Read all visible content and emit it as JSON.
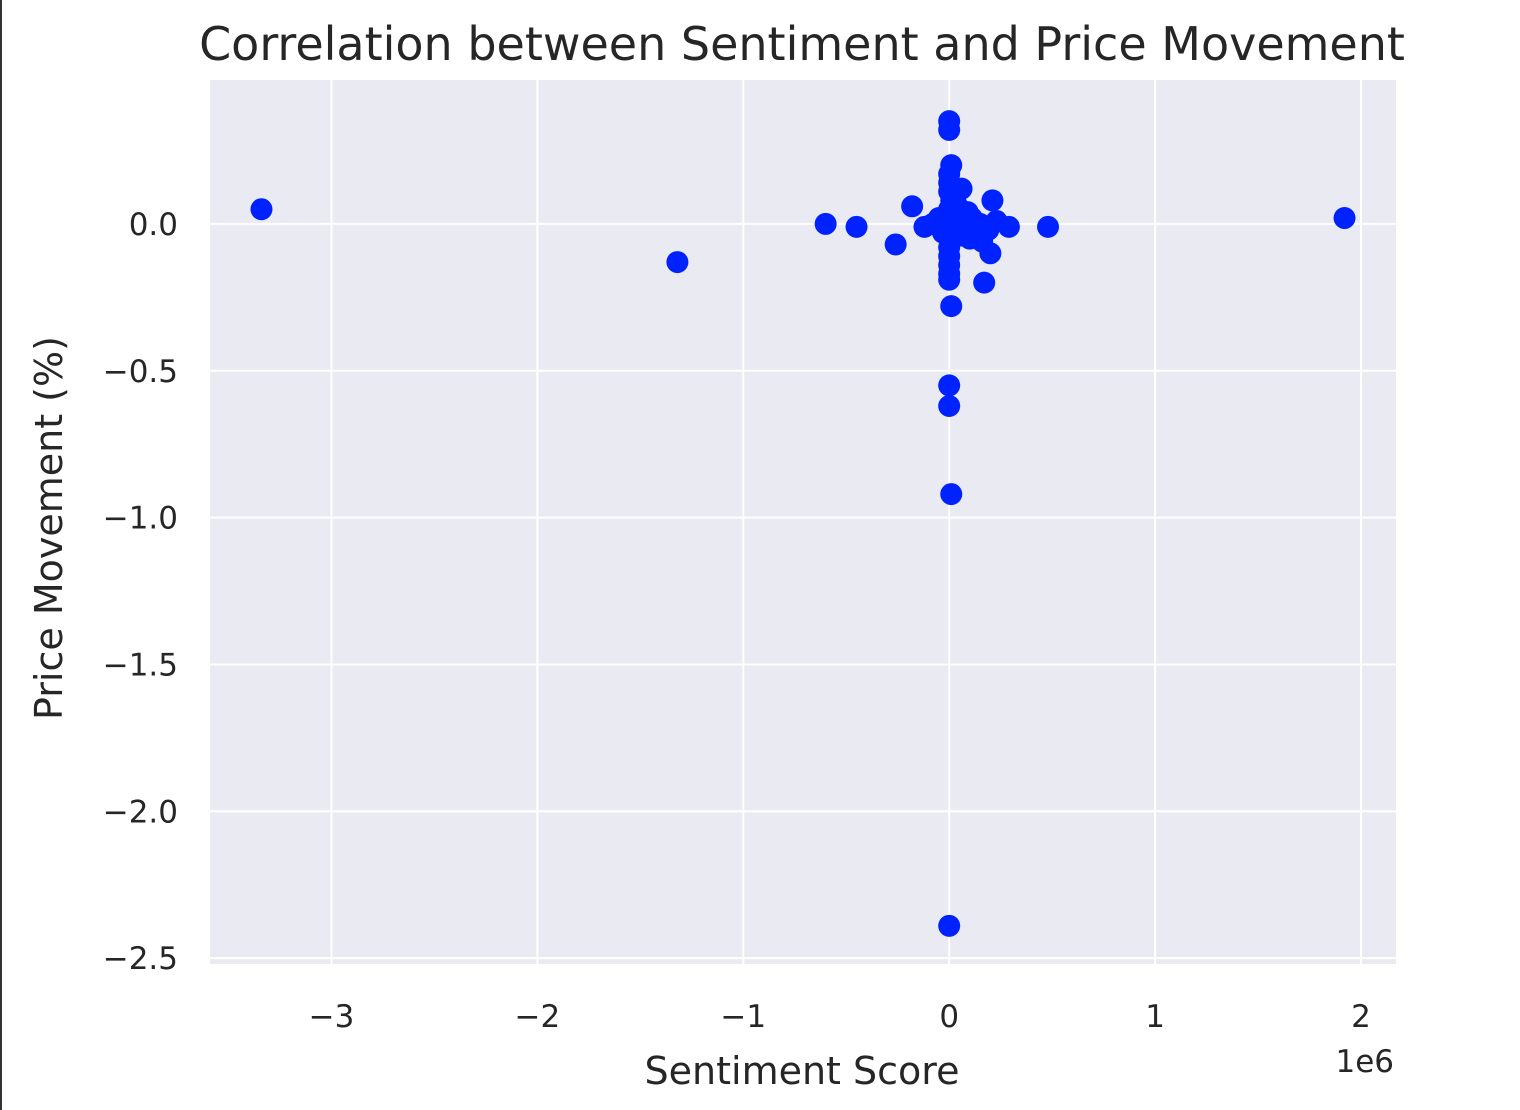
{
  "chart_data": {
    "type": "scatter",
    "title": "Correlation between Sentiment and Price Movement",
    "xlabel": "Sentiment Score",
    "ylabel": "Price Movement (%)",
    "x_offset_label": "1e6",
    "xlim": [
      -3.59,
      2.17
    ],
    "ylim": [
      -2.52,
      0.49
    ],
    "x_ticks": [
      {
        "value": -3,
        "label": "−3"
      },
      {
        "value": -2,
        "label": "−2"
      },
      {
        "value": -1,
        "label": "−1"
      },
      {
        "value": 0,
        "label": "0"
      },
      {
        "value": 1,
        "label": "1"
      },
      {
        "value": 2,
        "label": "2"
      }
    ],
    "y_ticks": [
      {
        "value": 0.0,
        "label": "0.0"
      },
      {
        "value": -0.5,
        "label": "−0.5"
      },
      {
        "value": -1.0,
        "label": "−1.0"
      },
      {
        "value": -1.5,
        "label": "−1.5"
      },
      {
        "value": -2.0,
        "label": "−2.0"
      },
      {
        "value": -2.5,
        "label": "−2.5"
      }
    ],
    "grid": true,
    "colors": {
      "point": "#0022ff",
      "plot_background": "#eaeaf2",
      "grid": "#ffffff",
      "text": "#262626"
    },
    "points": [
      {
        "x": -3.34,
        "y": 0.05
      },
      {
        "x": -1.32,
        "y": -0.13
      },
      {
        "x": -0.6,
        "y": 0.0
      },
      {
        "x": -0.45,
        "y": -0.01
      },
      {
        "x": -0.26,
        "y": -0.07
      },
      {
        "x": -0.18,
        "y": 0.06
      },
      {
        "x": -0.12,
        "y": -0.01
      },
      {
        "x": -0.08,
        "y": 0.0
      },
      {
        "x": -0.05,
        "y": 0.02
      },
      {
        "x": -0.03,
        "y": -0.03
      },
      {
        "x": 0.0,
        "y": 0.35
      },
      {
        "x": 0.0,
        "y": 0.32
      },
      {
        "x": 0.01,
        "y": 0.2
      },
      {
        "x": 0.0,
        "y": 0.17
      },
      {
        "x": 0.0,
        "y": 0.14
      },
      {
        "x": 0.0,
        "y": 0.11
      },
      {
        "x": 0.01,
        "y": 0.08
      },
      {
        "x": 0.0,
        "y": 0.05
      },
      {
        "x": 0.01,
        "y": 0.02
      },
      {
        "x": 0.0,
        "y": -0.02
      },
      {
        "x": 0.0,
        "y": -0.05
      },
      {
        "x": 0.0,
        "y": -0.08
      },
      {
        "x": 0.0,
        "y": -0.11
      },
      {
        "x": 0.0,
        "y": -0.14
      },
      {
        "x": 0.0,
        "y": -0.17
      },
      {
        "x": 0.0,
        "y": -0.19
      },
      {
        "x": 0.01,
        "y": -0.28
      },
      {
        "x": 0.0,
        "y": -0.55
      },
      {
        "x": 0.0,
        "y": -0.62
      },
      {
        "x": 0.01,
        "y": -0.92
      },
      {
        "x": 0.0,
        "y": -2.39
      },
      {
        "x": 0.02,
        "y": 0.0
      },
      {
        "x": 0.03,
        "y": 0.09
      },
      {
        "x": 0.04,
        "y": 0.06
      },
      {
        "x": 0.05,
        "y": 0.03
      },
      {
        "x": 0.05,
        "y": -0.04
      },
      {
        "x": 0.06,
        "y": 0.12
      },
      {
        "x": 0.07,
        "y": 0.01
      },
      {
        "x": 0.08,
        "y": -0.02
      },
      {
        "x": 0.09,
        "y": 0.04
      },
      {
        "x": 0.1,
        "y": -0.05
      },
      {
        "x": 0.11,
        "y": 0.02
      },
      {
        "x": 0.12,
        "y": -0.03
      },
      {
        "x": 0.13,
        "y": -0.01
      },
      {
        "x": 0.15,
        "y": 0.0
      },
      {
        "x": 0.16,
        "y": -0.06
      },
      {
        "x": 0.17,
        "y": -0.2
      },
      {
        "x": 0.19,
        "y": -0.02
      },
      {
        "x": 0.2,
        "y": -0.1
      },
      {
        "x": 0.21,
        "y": 0.08
      },
      {
        "x": 0.23,
        "y": 0.01
      },
      {
        "x": 0.29,
        "y": -0.01
      },
      {
        "x": 0.48,
        "y": -0.01
      },
      {
        "x": 1.92,
        "y": 0.02
      }
    ]
  }
}
